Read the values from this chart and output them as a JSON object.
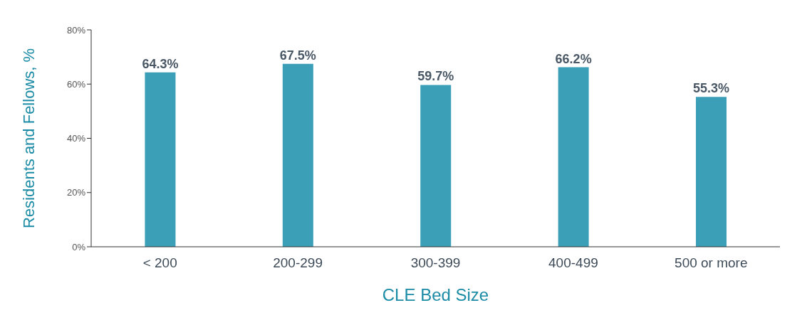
{
  "chart_data": {
    "type": "bar",
    "xlabel": "CLE Bed Size",
    "ylabel": "Residents and Fellows, %",
    "categories": [
      "< 200",
      "200-299",
      "300-399",
      "400-499",
      "500 or more"
    ],
    "values": [
      64.3,
      67.5,
      59.7,
      66.2,
      55.3
    ],
    "value_labels": [
      "64.3%",
      "67.5%",
      "59.7%",
      "66.2%",
      "55.3%"
    ],
    "color": "#3a9fb7",
    "ylim": [
      0,
      80
    ],
    "yticks": [
      {
        "value": 0,
        "label": "0%"
      },
      {
        "value": 20,
        "label": "20%"
      },
      {
        "value": 40,
        "label": "40%"
      },
      {
        "value": 60,
        "label": "60%"
      },
      {
        "value": 80,
        "label": "80%"
      }
    ],
    "grid": false,
    "legend": false
  }
}
